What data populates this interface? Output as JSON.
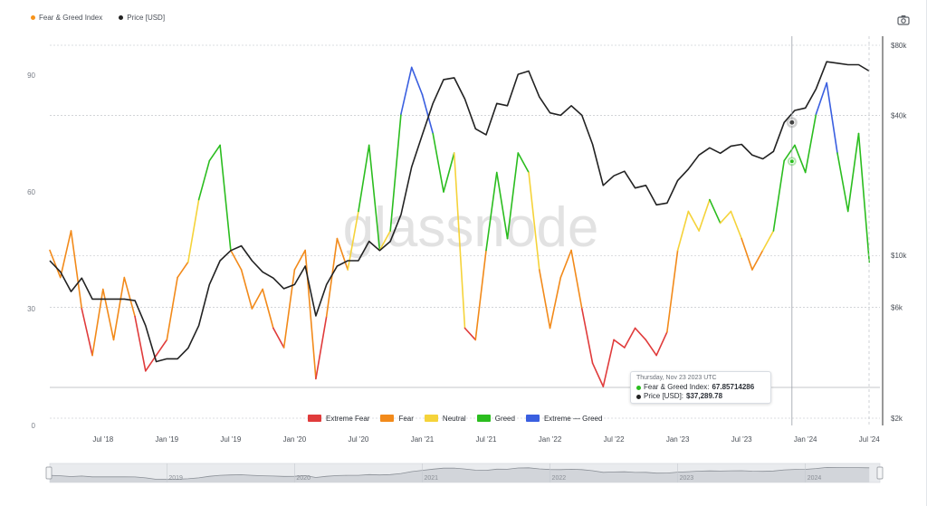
{
  "legend_top": [
    {
      "label": "Fear & Greed Index",
      "color": "#f7931a"
    },
    {
      "label": "Price [USD]",
      "color": "#222222"
    }
  ],
  "watermark": "glassnode",
  "camera_icon": "camera-icon",
  "tooltip": {
    "date": "Thursday, Nov 23 2023 UTC",
    "fg_label": "Fear & Greed Index: ",
    "fg_value": "67.85714286",
    "price_label": "Price [USD]: ",
    "price_value": "$37,289.78"
  },
  "zones": [
    {
      "label": "Extreme Fear",
      "color": "#e03b3b"
    },
    {
      "label": "Fear",
      "color": "#f28a1a"
    },
    {
      "label": "Neutral",
      "color": "#f5d33a"
    },
    {
      "label": "Greed",
      "color": "#2bbd1f"
    },
    {
      "label": "Extreme — Greed",
      "color": "#3a5fe0"
    }
  ],
  "navigator_labels": [
    "2019",
    "2020",
    "2021",
    "2022",
    "2023",
    "2024"
  ],
  "chart_data": {
    "type": "line",
    "x_ticks": [
      "Jul '18",
      "Jan '19",
      "Jul '19",
      "Jan '20",
      "Jul '20",
      "Jan '21",
      "Jul '21",
      "Jan '22",
      "Jul '22",
      "Jan '23",
      "Jul '23",
      "Jan '24",
      "Jul '24"
    ],
    "y_left_ticks": [
      "0",
      "30",
      "60",
      "90"
    ],
    "y_left_range": [
      0,
      100
    ],
    "y_right_ticks": [
      "$2k",
      "$6k",
      "$10k",
      "$40k",
      "$80k"
    ],
    "y_right_scale": "log",
    "y_right_range": [
      2000,
      80000
    ],
    "x_range": [
      "2018-02",
      "2024-08"
    ],
    "series": [
      {
        "name": "Fear & Greed Index",
        "color_by_zone": true,
        "x": [
          "2018-02",
          "2018-03",
          "2018-04",
          "2018-05",
          "2018-06",
          "2018-07",
          "2018-08",
          "2018-09",
          "2018-10",
          "2018-11",
          "2018-12",
          "2019-01",
          "2019-02",
          "2019-03",
          "2019-04",
          "2019-05",
          "2019-06",
          "2019-07",
          "2019-08",
          "2019-09",
          "2019-10",
          "2019-11",
          "2019-12",
          "2020-01",
          "2020-02",
          "2020-03",
          "2020-04",
          "2020-05",
          "2020-06",
          "2020-07",
          "2020-08",
          "2020-09",
          "2020-10",
          "2020-11",
          "2020-12",
          "2021-01",
          "2021-02",
          "2021-03",
          "2021-04",
          "2021-05",
          "2021-06",
          "2021-07",
          "2021-08",
          "2021-09",
          "2021-10",
          "2021-11",
          "2021-12",
          "2022-01",
          "2022-02",
          "2022-03",
          "2022-04",
          "2022-05",
          "2022-06",
          "2022-07",
          "2022-08",
          "2022-09",
          "2022-10",
          "2022-11",
          "2022-12",
          "2023-01",
          "2023-02",
          "2023-03",
          "2023-04",
          "2023-05",
          "2023-06",
          "2023-07",
          "2023-08",
          "2023-09",
          "2023-10",
          "2023-11",
          "2023-12",
          "2024-01",
          "2024-02",
          "2024-03",
          "2024-04",
          "2024-05",
          "2024-06",
          "2024-07"
        ],
        "values": [
          45,
          38,
          50,
          30,
          18,
          35,
          22,
          38,
          28,
          14,
          18,
          22,
          38,
          42,
          58,
          68,
          72,
          45,
          40,
          30,
          35,
          25,
          20,
          40,
          45,
          12,
          28,
          48,
          40,
          55,
          72,
          45,
          50,
          80,
          92,
          85,
          75,
          60,
          70,
          25,
          22,
          45,
          65,
          48,
          70,
          65,
          40,
          25,
          38,
          45,
          30,
          16,
          10,
          22,
          20,
          25,
          22,
          18,
          24,
          45,
          55,
          50,
          58,
          52,
          55,
          48,
          40,
          45,
          50,
          68,
          72,
          65,
          80,
          88,
          70,
          55,
          75,
          42
        ],
        "highlight": {
          "x": "2023-11-23",
          "value": 67.85714286
        }
      },
      {
        "name": "Price [USD]",
        "color": "#222222",
        "x": [
          "2018-02",
          "2018-03",
          "2018-04",
          "2018-05",
          "2018-06",
          "2018-07",
          "2018-08",
          "2018-09",
          "2018-10",
          "2018-11",
          "2018-12",
          "2019-01",
          "2019-02",
          "2019-03",
          "2019-04",
          "2019-05",
          "2019-06",
          "2019-07",
          "2019-08",
          "2019-09",
          "2019-10",
          "2019-11",
          "2019-12",
          "2020-01",
          "2020-02",
          "2020-03",
          "2020-04",
          "2020-05",
          "2020-06",
          "2020-07",
          "2020-08",
          "2020-09",
          "2020-10",
          "2020-11",
          "2020-12",
          "2021-01",
          "2021-02",
          "2021-03",
          "2021-04",
          "2021-05",
          "2021-06",
          "2021-07",
          "2021-08",
          "2021-09",
          "2021-10",
          "2021-11",
          "2021-12",
          "2022-01",
          "2022-02",
          "2022-03",
          "2022-04",
          "2022-05",
          "2022-06",
          "2022-07",
          "2022-08",
          "2022-09",
          "2022-10",
          "2022-11",
          "2022-12",
          "2023-01",
          "2023-02",
          "2023-03",
          "2023-04",
          "2023-05",
          "2023-06",
          "2023-07",
          "2023-08",
          "2023-09",
          "2023-10",
          "2023-11",
          "2023-12",
          "2024-01",
          "2024-02",
          "2024-03",
          "2024-04",
          "2024-05",
          "2024-06",
          "2024-07"
        ],
        "values": [
          9500,
          8500,
          7000,
          8000,
          6500,
          6500,
          6500,
          6500,
          6400,
          5000,
          3500,
          3600,
          3600,
          4000,
          5000,
          7500,
          9500,
          10500,
          11000,
          9500,
          8500,
          8000,
          7200,
          7500,
          9000,
          5500,
          7500,
          9000,
          9500,
          9500,
          11500,
          10500,
          11500,
          15000,
          24000,
          33000,
          45000,
          57000,
          58000,
          47000,
          35000,
          33000,
          45000,
          44000,
          60000,
          62000,
          48000,
          41000,
          40000,
          44000,
          40000,
          30000,
          20000,
          22000,
          23000,
          19500,
          20000,
          16500,
          16800,
          21000,
          23500,
          27000,
          29000,
          27500,
          29500,
          30000,
          27000,
          26000,
          28000,
          37289,
          42000,
          43000,
          52000,
          68000,
          67000,
          66000,
          66000,
          62000
        ],
        "highlight": {
          "x": "2023-11-23",
          "value": 37289.78
        }
      }
    ]
  }
}
